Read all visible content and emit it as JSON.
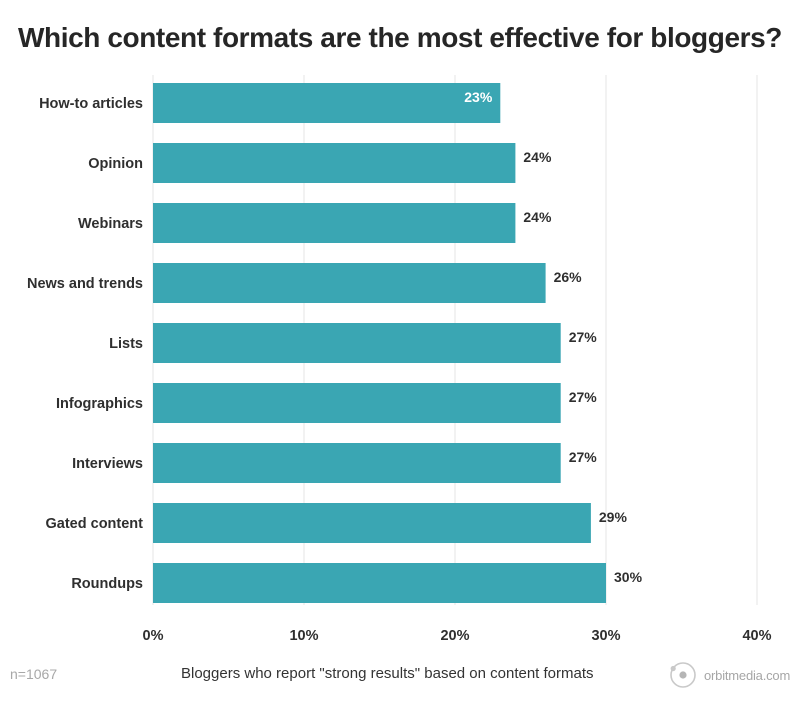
{
  "chart_data": {
    "type": "bar",
    "orientation": "horizontal",
    "title": "Which content formats are the most effective for bloggers?",
    "xlabel": "Bloggers who report \"strong results\" based on content formats",
    "ylabel": "",
    "categories": [
      "How-to articles",
      "Opinion",
      "Webinars",
      "News and trends",
      "Lists",
      "Infographics",
      "Interviews",
      "Gated content",
      "Roundups"
    ],
    "values": [
      23,
      24,
      24,
      26,
      27,
      27,
      27,
      29,
      30
    ],
    "value_labels": [
      "23%",
      "24%",
      "24%",
      "26%",
      "27%",
      "27%",
      "27%",
      "29%",
      "30%"
    ],
    "xlim": [
      0,
      40
    ],
    "x_ticks": [
      0,
      10,
      20,
      30,
      40
    ],
    "x_tick_labels": [
      "0%",
      "10%",
      "20%",
      "30%",
      "40%"
    ],
    "grid": true,
    "legend": "none",
    "colors": {
      "bar": "#3aa6b3",
      "grid": "#e6e6e6",
      "label_inside": "#ffffff",
      "label_outside": "#2f2f2f"
    }
  },
  "footer": {
    "sample_size": "n=1067",
    "caption": "Bloggers who report \"strong results\" based on content formats",
    "brand": "orbitmedia.com",
    "brand_icon": "orbit-logo-icon"
  }
}
